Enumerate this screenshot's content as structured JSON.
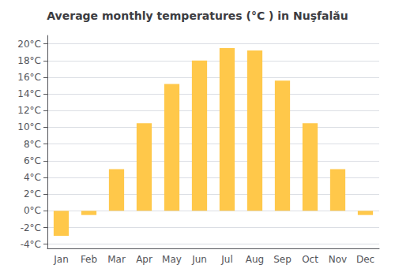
{
  "chart_data": {
    "type": "bar",
    "title": "Average monthly temperatures (°C ) in Nuşfalău",
    "categories": [
      "Jan",
      "Feb",
      "Mar",
      "Apr",
      "May",
      "Jun",
      "Jul",
      "Aug",
      "Sep",
      "Oct",
      "Nov",
      "Dec"
    ],
    "values": [
      -3.0,
      -0.5,
      5.0,
      10.5,
      15.2,
      18.0,
      19.5,
      19.2,
      15.6,
      10.5,
      5.0,
      -0.5
    ],
    "color": "#FFC84A",
    "ylim": [
      -4.5,
      21
    ],
    "yticks": [
      {
        "value": -4,
        "label": "-4°C"
      },
      {
        "value": -2,
        "label": "-2°C"
      },
      {
        "value": 0,
        "label": "0°C"
      },
      {
        "value": 2,
        "label": "2°C"
      },
      {
        "value": 4,
        "label": "4°C"
      },
      {
        "value": 6,
        "label": "6°C"
      },
      {
        "value": 8,
        "label": "8°C"
      },
      {
        "value": 10,
        "label": "10°C"
      },
      {
        "value": 12,
        "label": "12°C"
      },
      {
        "value": 14,
        "label": "14°C"
      },
      {
        "value": 16,
        "label": "16°C"
      },
      {
        "value": 18,
        "label": "18°C"
      },
      {
        "value": 20,
        "label": "20°C"
      }
    ],
    "grid": true
  }
}
